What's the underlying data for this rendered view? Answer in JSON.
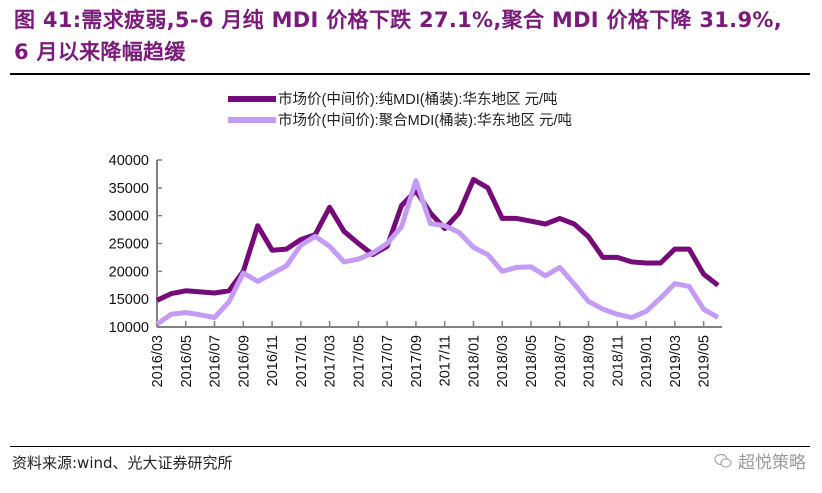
{
  "figure": {
    "title_line1": "图 41:需求疲弱,5-6 月纯 MDI 价格下跌 27.1%,聚合 MDI 价格下降 31.9%,",
    "title_line2": "6 月以来降幅趋缓",
    "source": "资料来源:wind、光大证券研究所",
    "watermark": "超悦策略",
    "watermark_icon": "wechat-icon"
  },
  "colors": {
    "title": "#7a1a7a",
    "series_pure": "#760a78",
    "series_polymeric": "#c59cf5",
    "axis": "#808080"
  },
  "chart_data": {
    "type": "line",
    "title": "",
    "xlabel": "",
    "ylabel": "",
    "ylim": [
      10000,
      40000
    ],
    "yticks": [
      10000,
      15000,
      20000,
      25000,
      30000,
      35000,
      40000
    ],
    "grid": false,
    "legend_position": "top-center",
    "x": [
      "2016/03",
      "2016/04",
      "2016/05",
      "2016/06",
      "2016/07",
      "2016/08",
      "2016/09",
      "2016/10",
      "2016/11",
      "2016/12",
      "2017/01",
      "2017/02",
      "2017/03",
      "2017/04",
      "2017/05",
      "2017/06",
      "2017/07",
      "2017/08",
      "2017/09",
      "2017/10",
      "2017/11",
      "2017/12",
      "2018/01",
      "2018/02",
      "2018/03",
      "2018/04",
      "2018/05",
      "2018/06",
      "2018/07",
      "2018/08",
      "2018/09",
      "2018/10",
      "2018/11",
      "2018/12",
      "2019/01",
      "2019/02",
      "2019/03",
      "2019/04",
      "2019/05",
      "2019/06"
    ],
    "xtick_labels": [
      "2016/03",
      "2016/05",
      "2016/07",
      "2016/09",
      "2016/11",
      "2017/01",
      "2017/03",
      "2017/05",
      "2017/07",
      "2017/09",
      "2017/11",
      "2018/01",
      "2018/03",
      "2018/05",
      "2018/07",
      "2018/09",
      "2018/11",
      "2019/01",
      "2019/03",
      "2019/05"
    ],
    "series": [
      {
        "name": "市场价(中间价):纯MDI(桶装):华东地区 元/吨",
        "key": "pure",
        "values": [
          14800,
          16000,
          16500,
          16300,
          16100,
          16500,
          20000,
          28200,
          23800,
          24000,
          25700,
          26600,
          31500,
          27200,
          25000,
          23000,
          24500,
          31800,
          34500,
          30500,
          27700,
          30500,
          36500,
          35000,
          29500,
          29500,
          29000,
          28500,
          29500,
          28500,
          26200,
          22500,
          22500,
          21700,
          21500,
          21500,
          24000,
          24000,
          19500,
          17500
        ]
      },
      {
        "name": "市场价(中间价):聚合MDI(桶装):华东地区 元/吨",
        "key": "polymeric",
        "values": [
          10500,
          12300,
          12600,
          12200,
          11700,
          14500,
          19700,
          18200,
          19600,
          21000,
          24700,
          26300,
          24500,
          21700,
          22200,
          23300,
          25000,
          28000,
          36300,
          28600,
          28200,
          27000,
          24300,
          23000,
          20000,
          20700,
          20800,
          19200,
          20700,
          17700,
          14600,
          13200,
          12300,
          11700,
          12800,
          15200,
          17800,
          17300,
          13200,
          11700
        ]
      }
    ]
  }
}
